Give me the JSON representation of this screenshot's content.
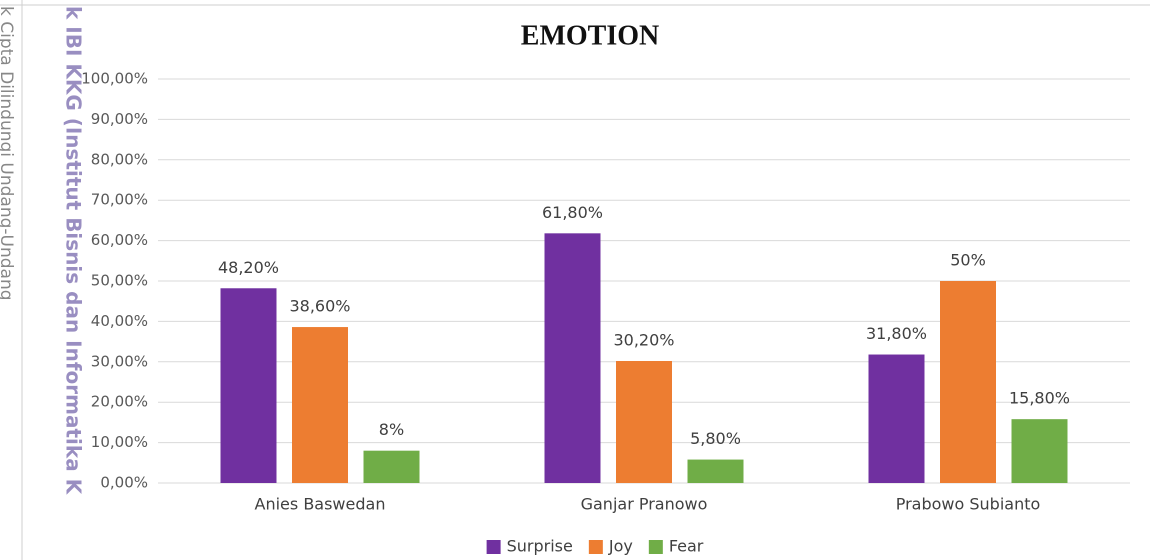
{
  "chart_data": {
    "type": "bar",
    "title": "EMOTION",
    "categories": [
      "Anies Baswedan",
      "Ganjar Pranowo",
      "Prabowo Subianto"
    ],
    "series": [
      {
        "name": "Surprise",
        "color": "#7030a0",
        "values": [
          48.2,
          61.8,
          31.8
        ],
        "value_labels": [
          "48,20%",
          "61,80%",
          "31,80%"
        ]
      },
      {
        "name": "Joy",
        "color": "#ed7d31",
        "values": [
          38.6,
          30.2,
          50
        ],
        "value_labels": [
          "38,60%",
          "30,20%",
          "50%"
        ]
      },
      {
        "name": "Fear",
        "color": "#70ad47",
        "values": [
          8,
          5.8,
          15.8
        ],
        "value_labels": [
          "8%",
          "5,80%",
          "15,80%"
        ]
      }
    ],
    "ylim": [
      0,
      100
    ],
    "yticks": [
      {
        "value": 0,
        "label": "0,00%"
      },
      {
        "value": 10,
        "label": "10,00%"
      },
      {
        "value": 20,
        "label": "20,00%"
      },
      {
        "value": 30,
        "label": "30,00%"
      },
      {
        "value": 40,
        "label": "40,00%"
      },
      {
        "value": 50,
        "label": "50,00%"
      },
      {
        "value": 60,
        "label": "60,00%"
      },
      {
        "value": 70,
        "label": "70,00%"
      },
      {
        "value": 80,
        "label": "80,00%"
      },
      {
        "value": 90,
        "label": "90,00%"
      },
      {
        "value": 100,
        "label": "100,00%"
      }
    ],
    "grid": true,
    "legend": "bottom"
  },
  "watermark": [
    "k Cipta Dilindungi Undang-Undang",
    "k IBI KKG (Institut Bisnis dan Informatika K"
  ]
}
